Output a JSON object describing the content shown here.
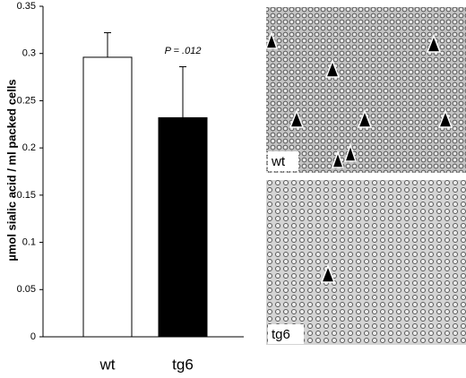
{
  "chart_data": {
    "type": "bar",
    "y_label": "µmol sialic acid / ml packed cells",
    "categories": [
      "wt",
      "tg6"
    ],
    "values": [
      0.296,
      0.232
    ],
    "errors": [
      0.026,
      0.054
    ],
    "colors": [
      "#ffffff",
      "#000000"
    ],
    "annotation": "P = .012",
    "ylim": [
      0,
      0.35
    ],
    "yticks": [
      0,
      0.05,
      0.1,
      0.15,
      0.2,
      0.25,
      0.3,
      0.35
    ]
  },
  "images": [
    {
      "label": "wt"
    },
    {
      "label": "tg6"
    }
  ]
}
